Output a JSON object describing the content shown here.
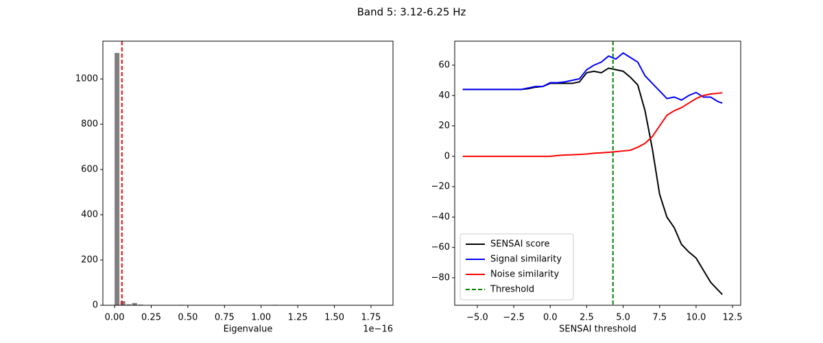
{
  "title": "Band 5: 3.12-6.25 Hz",
  "chart_data": [
    {
      "type": "histogram",
      "x_label": "Eigenvalue",
      "x_offset_label": "1e−16",
      "color": "#7f7f7f",
      "bins": [
        0,
        0.04,
        0.08,
        0.12,
        0.16,
        0.2,
        0.24,
        0.28,
        0.32,
        0.36,
        0.4,
        0.44,
        0.48,
        0.52,
        0.56,
        0.6,
        0.64,
        0.68,
        0.72,
        0.76,
        0.8,
        0.84,
        0.88,
        0.92,
        0.96,
        1,
        1.04,
        1.08,
        1.12,
        1.16,
        1.2,
        1.24,
        1.28,
        1.32,
        1.36,
        1.4,
        1.44,
        1.48,
        1.52,
        1.56,
        1.6,
        1.64,
        1.68,
        1.72,
        1.76,
        1.8
      ],
      "values": [
        1115,
        18,
        4,
        10,
        3,
        1,
        0,
        0,
        0,
        0,
        0,
        2,
        0,
        0,
        0,
        0,
        0,
        0,
        0,
        0,
        0,
        0,
        0,
        0,
        0,
        0,
        0,
        2,
        0,
        0,
        0,
        0,
        0,
        0,
        0,
        0,
        0,
        0,
        0,
        0,
        0,
        0,
        0,
        0,
        1
      ],
      "threshold": {
        "value": 0.05,
        "color": "#ff0000"
      },
      "xlim": [
        -0.08,
        1.9
      ],
      "ylim": [
        0,
        1167
      ],
      "xticks": [
        {
          "value": 0,
          "label": "0.00"
        },
        {
          "value": 0.25,
          "label": "0.25"
        },
        {
          "value": 0.5,
          "label": "0.50"
        },
        {
          "value": 0.75,
          "label": "0.75"
        },
        {
          "value": 1,
          "label": "1.00"
        },
        {
          "value": 1.25,
          "label": "1.25"
        },
        {
          "value": 1.5,
          "label": "1.50"
        },
        {
          "value": 1.75,
          "label": "1.75"
        }
      ],
      "yticks": [
        0,
        200,
        400,
        600,
        800,
        1000
      ]
    },
    {
      "type": "line",
      "x_label": "SENSAI threshold",
      "legend": "lower left",
      "x": [
        -6,
        -5.5,
        -5,
        -4.5,
        -4,
        -3.5,
        -3,
        -2.5,
        -2,
        -1.5,
        -1,
        -0.5,
        0,
        0.5,
        1,
        1.5,
        2,
        2.5,
        3,
        3.5,
        4,
        4.5,
        5,
        5.5,
        6,
        6.5,
        7,
        7.5,
        8,
        8.5,
        9,
        9.5,
        10,
        10.5,
        11,
        11.5,
        11.8
      ],
      "series": [
        {
          "name": "SENSAI score",
          "color": "#000000",
          "values": [
            44,
            44,
            44,
            44,
            44,
            44,
            44,
            44,
            44,
            44.5,
            45.5,
            46,
            48,
            48,
            48,
            48,
            49,
            55,
            56,
            55,
            58,
            57,
            56,
            52,
            47,
            30,
            5,
            -25,
            -40,
            -47,
            -58,
            -63,
            -67,
            -75,
            -83,
            -88,
            -91
          ]
        },
        {
          "name": "Signal similarity",
          "color": "#0000ff",
          "values": [
            44,
            44,
            44,
            44,
            44,
            44,
            44,
            44,
            44,
            45,
            46,
            46,
            48.5,
            48.5,
            49,
            50,
            51,
            57,
            60,
            62,
            66,
            64,
            68,
            65,
            62,
            53,
            48,
            43,
            38,
            39,
            37,
            40,
            42,
            39,
            39,
            36,
            35
          ]
        },
        {
          "name": "Noise similarity",
          "color": "#ff0000",
          "values": [
            0,
            0,
            0,
            0,
            0,
            0,
            0,
            0,
            0,
            0,
            0,
            0,
            0,
            0.5,
            0.8,
            1,
            1.2,
            1.5,
            2,
            2.3,
            2.6,
            3,
            3.5,
            4,
            6,
            8.5,
            13,
            20,
            27,
            30,
            32,
            35,
            38,
            40,
            41,
            41.5,
            41.8
          ]
        }
      ],
      "threshold": {
        "name": "Threshold",
        "value": 4.3,
        "color": "#008000"
      },
      "xlim": [
        -6.55,
        13.06
      ],
      "ylim": [
        -98.1,
        75.8
      ],
      "xticks": [
        {
          "value": -5,
          "label": "−5.0"
        },
        {
          "value": -2.5,
          "label": "−2.5"
        },
        {
          "value": 0,
          "label": "0.0"
        },
        {
          "value": 2.5,
          "label": "2.5"
        },
        {
          "value": 5,
          "label": "5.0"
        },
        {
          "value": 7.5,
          "label": "7.5"
        },
        {
          "value": 10,
          "label": "10.0"
        },
        {
          "value": 12.5,
          "label": "12.5"
        }
      ],
      "yticks": [
        {
          "value": -80,
          "label": "−80"
        },
        {
          "value": -60,
          "label": "−60"
        },
        {
          "value": -40,
          "label": "−40"
        },
        {
          "value": -20,
          "label": "−20"
        },
        0,
        20,
        40,
        60
      ]
    }
  ]
}
